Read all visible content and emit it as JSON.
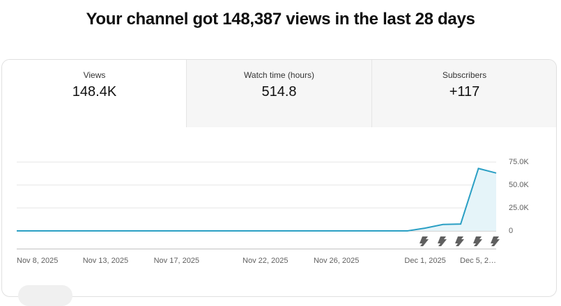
{
  "header": {
    "title": "Your channel got 148,387 views in the last 28 days"
  },
  "tabs": [
    {
      "label": "Views",
      "value": "148.4K"
    },
    {
      "label": "Watch time (hours)",
      "value": "514.8"
    },
    {
      "label": "Subscribers",
      "value": "+117"
    }
  ],
  "chart_data": {
    "type": "line",
    "color": "#2a9fc4",
    "fill": "#e5f4f9",
    "categories": [
      "Nov 8, 2025",
      null,
      null,
      null,
      null,
      "Nov 13, 2025",
      null,
      null,
      null,
      "Nov 17, 2025",
      null,
      null,
      null,
      null,
      "Nov 22, 2025",
      null,
      null,
      null,
      "Nov 26, 2025",
      null,
      null,
      null,
      null,
      "Dec 1, 2025",
      null,
      null,
      null,
      "Dec 5, 2…"
    ],
    "values": [
      0,
      0,
      0,
      0,
      0,
      0,
      0,
      0,
      0,
      0,
      0,
      0,
      0,
      0,
      0,
      0,
      0,
      0,
      0,
      0,
      0,
      0,
      0,
      3000,
      7000,
      7500,
      68000,
      63000
    ],
    "ylim": [
      0,
      75000
    ],
    "yticks": [
      0,
      {
        "value": 25000,
        "label": "25.0K"
      },
      {
        "value": 50000,
        "label": "50.0K"
      },
      {
        "value": 75000,
        "label": "75.0K"
      }
    ],
    "grid": true
  }
}
